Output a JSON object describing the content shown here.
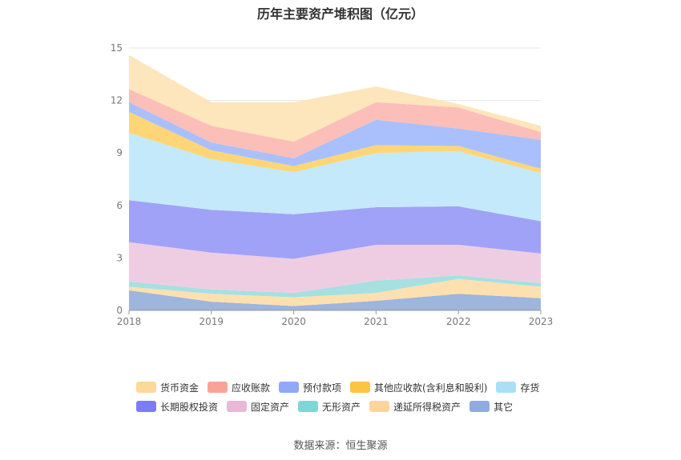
{
  "title": "历年主要资产堆积图（亿元）",
  "source": "数据来源：恒生聚源",
  "chart_data": {
    "type": "area",
    "stacked": true,
    "categories": [
      "2018",
      "2019",
      "2020",
      "2021",
      "2022",
      "2023"
    ],
    "ylim": [
      0,
      15
    ],
    "yticks": [
      "0",
      "3",
      "6",
      "9",
      "12",
      "15"
    ],
    "grid": true,
    "legend_position": "bottom",
    "series": [
      {
        "name": "其它",
        "color": "#9eb5dd",
        "values": [
          1.15,
          0.5,
          0.25,
          0.55,
          0.95,
          0.7
        ]
      },
      {
        "name": "递延所得税资产",
        "color": "#fde0b0",
        "values": [
          0.2,
          0.45,
          0.5,
          0.45,
          0.85,
          0.65
        ]
      },
      {
        "name": "无形资产",
        "color": "#a6e0e1",
        "values": [
          0.3,
          0.25,
          0.25,
          0.7,
          0.2,
          0.2
        ]
      },
      {
        "name": "固定资产",
        "color": "#eecde2",
        "values": [
          2.25,
          2.1,
          1.95,
          2.05,
          1.75,
          1.7
        ]
      },
      {
        "name": "长期股权投资",
        "color": "#a0a2f8",
        "values": [
          2.4,
          2.45,
          2.55,
          2.15,
          2.2,
          1.85
        ]
      },
      {
        "name": "存货",
        "color": "#c3e9fb",
        "values": [
          3.85,
          2.9,
          2.4,
          3.1,
          3.15,
          2.75
        ]
      },
      {
        "name": "其他应收款(含利息和股利)",
        "color": "#fed678",
        "values": [
          1.2,
          0.5,
          0.35,
          0.45,
          0.3,
          0.25
        ]
      },
      {
        "name": "预付款项",
        "color": "#a9c0fc",
        "values": [
          0.55,
          0.45,
          0.45,
          1.45,
          1.0,
          1.65
        ]
      },
      {
        "name": "应收账款",
        "color": "#fcbeb9",
        "values": [
          0.75,
          0.95,
          0.95,
          1.0,
          1.2,
          0.45
        ]
      },
      {
        "name": "货币资金",
        "color": "#fde5bc",
        "values": [
          1.95,
          1.35,
          2.25,
          0.9,
          0.2,
          0.35
        ]
      }
    ],
    "legend_order": [
      "货币资金",
      "应收账款",
      "预付款项",
      "其他应收款(含利息和股利)",
      "存货",
      "长期股权投资",
      "固定资产",
      "无形资产",
      "递延所得税资产",
      "其它"
    ],
    "legend_colors": {
      "货币资金": "#fdd89a",
      "应收账款": "#f9a397",
      "预付款项": "#8fa8f8",
      "其他应收款(含利息和股利)": "#fdc444",
      "存货": "#a9e0f8",
      "长期股权投资": "#7b7df5",
      "固定资产": "#e8b9d7",
      "无形资产": "#7fd6d6",
      "递延所得税资产": "#fdd59a",
      "其它": "#8eace0"
    }
  }
}
